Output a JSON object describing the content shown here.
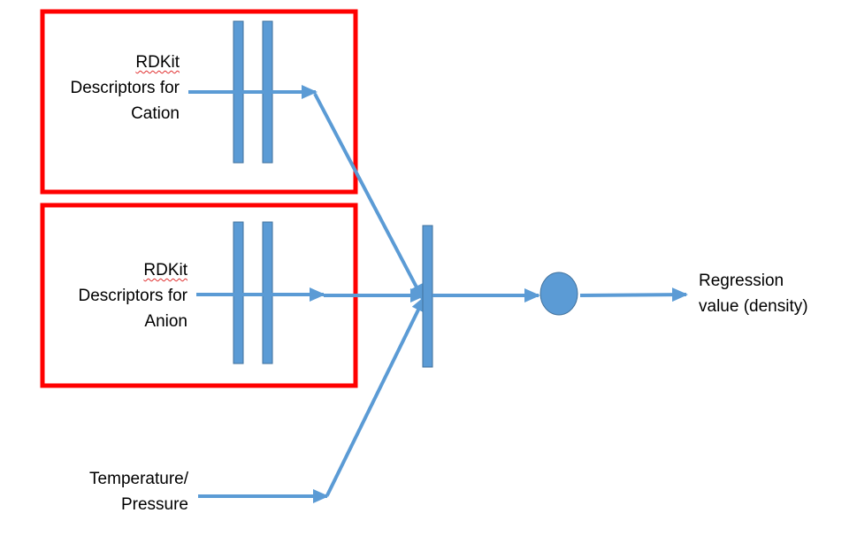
{
  "diagram": {
    "cation_input": {
      "line1": "RDKit",
      "line2": "Descriptors for",
      "line3": "Cation"
    },
    "anion_input": {
      "line1": "RDKit",
      "line2": "Descriptors for",
      "line3": "Anion"
    },
    "temp_input": {
      "line1": "Temperature/",
      "line2": "Pressure"
    },
    "output": {
      "line1": "Regression",
      "line2": "value (density)"
    }
  },
  "colors": {
    "highlight_box": "#ff0000",
    "layer_fill": "#5b9bd5",
    "layer_stroke": "#41719c",
    "arrow": "#5b9bd5",
    "text": "#000000",
    "spellcheck_underline": "#e03030"
  }
}
